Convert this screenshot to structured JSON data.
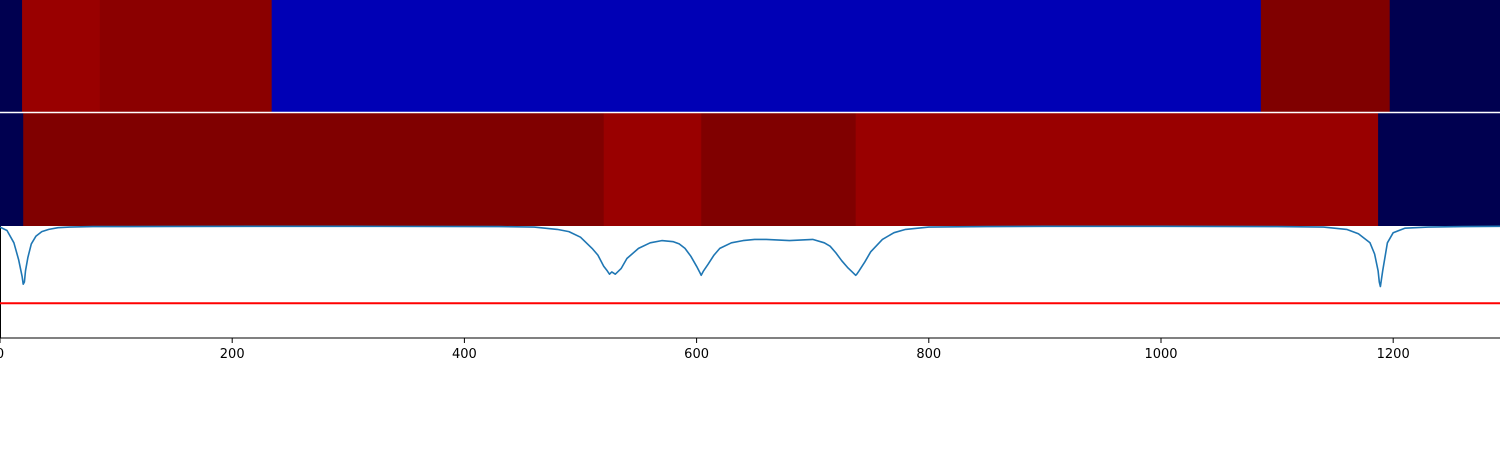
{
  "chart_data": [
    {
      "type": "heatmap",
      "row": "top",
      "segments": [
        {
          "x0": 0,
          "x1": 19,
          "color": "#000050"
        },
        {
          "x0": 19,
          "x1": 86,
          "color": "#990000"
        },
        {
          "x0": 86,
          "x1": 234,
          "color": "#8b0000"
        },
        {
          "x0": 234,
          "x1": 1086,
          "color": "#0000b5"
        },
        {
          "x0": 1086,
          "x1": 1197,
          "color": "#800000"
        },
        {
          "x0": 1197,
          "x1": 1292,
          "color": "#000050"
        }
      ]
    },
    {
      "type": "heatmap",
      "row": "middle",
      "segments": [
        {
          "x0": 0,
          "x1": 20,
          "color": "#000050"
        },
        {
          "x0": 20,
          "x1": 520,
          "color": "#800000"
        },
        {
          "x0": 520,
          "x1": 604,
          "color": "#990000"
        },
        {
          "x0": 604,
          "x1": 737,
          "color": "#800000"
        },
        {
          "x0": 737,
          "x1": 1187,
          "color": "#990000"
        },
        {
          "x0": 1187,
          "x1": 1292,
          "color": "#000050"
        }
      ]
    },
    {
      "type": "line",
      "xlim": [
        0,
        1292
      ],
      "ylim": [
        0,
        1
      ],
      "grid": false,
      "xticks": [
        "0",
        "200",
        "400",
        "600",
        "800",
        "1000",
        "1200"
      ],
      "series": [
        {
          "color": "#1f77b4",
          "x": [
            0,
            6,
            12,
            16,
            19,
            20,
            21,
            22,
            24,
            27,
            31,
            36,
            42,
            50,
            60,
            80,
            150,
            300,
            430,
            460,
            480,
            490,
            500,
            505,
            510,
            515,
            520,
            523,
            525,
            527,
            530,
            535,
            540,
            550,
            560,
            570,
            580,
            585,
            590,
            595,
            600,
            603,
            604,
            606,
            610,
            615,
            620,
            630,
            640,
            650,
            660,
            680,
            700,
            710,
            715,
            720,
            725,
            730,
            734,
            737,
            738,
            740,
            745,
            750,
            760,
            770,
            780,
            800,
            850,
            900,
            1000,
            1100,
            1140,
            1160,
            1170,
            1175,
            1180,
            1184,
            1187,
            1188,
            1189,
            1191,
            1195,
            1200,
            1210,
            1230,
            1260,
            1292
          ],
          "y": [
            0.99,
            0.96,
            0.85,
            0.7,
            0.55,
            0.48,
            0.5,
            0.6,
            0.72,
            0.84,
            0.91,
            0.95,
            0.97,
            0.985,
            0.99,
            0.995,
            0.996,
            0.997,
            0.995,
            0.99,
            0.97,
            0.95,
            0.9,
            0.85,
            0.8,
            0.74,
            0.64,
            0.6,
            0.57,
            0.59,
            0.57,
            0.62,
            0.71,
            0.8,
            0.85,
            0.87,
            0.86,
            0.84,
            0.8,
            0.73,
            0.64,
            0.58,
            0.56,
            0.6,
            0.66,
            0.74,
            0.8,
            0.85,
            0.87,
            0.88,
            0.88,
            0.87,
            0.88,
            0.85,
            0.82,
            0.76,
            0.69,
            0.63,
            0.59,
            0.56,
            0.57,
            0.6,
            0.68,
            0.77,
            0.88,
            0.94,
            0.97,
            0.99,
            0.995,
            0.997,
            0.997,
            0.995,
            0.99,
            0.97,
            0.93,
            0.89,
            0.85,
            0.75,
            0.6,
            0.5,
            0.46,
            0.6,
            0.85,
            0.94,
            0.98,
            0.99,
            0.995,
            0.997
          ]
        }
      ],
      "threshold": {
        "y": 0.31,
        "color": "#ff0000"
      }
    }
  ]
}
